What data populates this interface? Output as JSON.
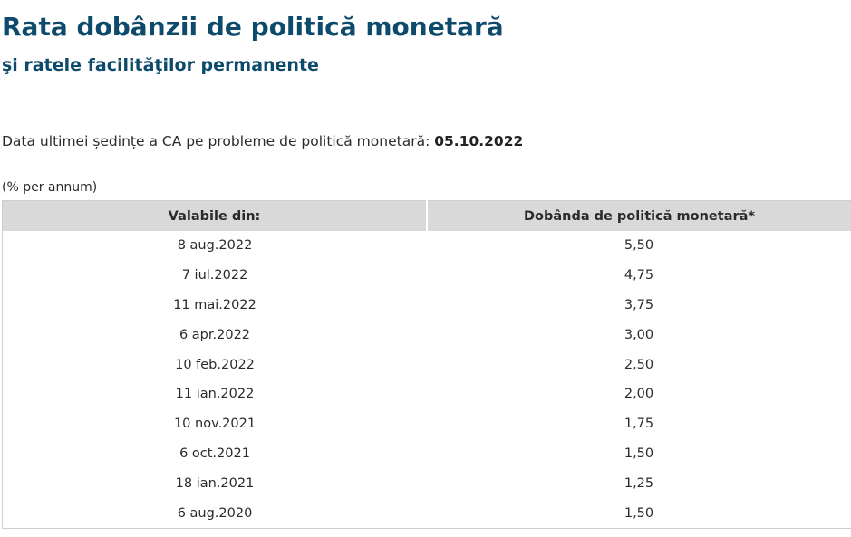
{
  "header": {
    "title": "Rata dobânzii de politică monetară",
    "subtitle": "şi ratele facilităţilor permanente"
  },
  "meeting": {
    "label": "Data ultimei ședințe a CA pe probleme de politică monetară:",
    "date": "05.10.2022"
  },
  "units_note": "(% per annum)",
  "table": {
    "columns": [
      "Valabile din:",
      "Dobânda de politică monetară*"
    ],
    "rows": [
      [
        "8 aug.2022",
        "5,50"
      ],
      [
        "7 iul.2022",
        "4,75"
      ],
      [
        "11 mai.2022",
        "3,75"
      ],
      [
        "6 apr.2022",
        "3,00"
      ],
      [
        "10 feb.2022",
        "2,50"
      ],
      [
        "11 ian.2022",
        "2,00"
      ],
      [
        "10 nov.2021",
        "1,75"
      ],
      [
        "6 oct.2021",
        "1,50"
      ],
      [
        "18 ian.2021",
        "1,25"
      ],
      [
        "6 aug.2020",
        "1,50"
      ]
    ]
  },
  "colors": {
    "heading": "#0d4a6b",
    "header_bg": "#d9d9d9",
    "border": "#cfcfcf"
  }
}
